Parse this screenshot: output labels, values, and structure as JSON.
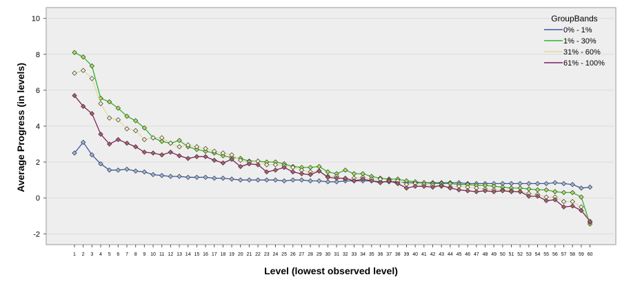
{
  "chart_data": {
    "type": "line",
    "xlabel": "Level (lowest observed level)",
    "ylabel": "Average Progress (in levels)",
    "ylim": [
      -2.6,
      10.6
    ],
    "yticks": [
      -2,
      0,
      2,
      4,
      6,
      8,
      10
    ],
    "grid": "horizontal",
    "legend": {
      "title": "GroupBands",
      "position": "top-right"
    },
    "x": [
      1,
      2,
      3,
      4,
      5,
      6,
      7,
      8,
      9,
      10,
      11,
      12,
      13,
      14,
      15,
      16,
      17,
      18,
      19,
      20,
      21,
      22,
      23,
      24,
      25,
      26,
      27,
      28,
      29,
      30,
      31,
      32,
      33,
      34,
      35,
      36,
      37,
      38,
      39,
      40,
      41,
      42,
      43,
      44,
      45,
      46,
      47,
      48,
      49,
      50,
      51,
      52,
      53,
      54,
      55,
      56,
      57,
      58,
      59,
      60
    ],
    "series": [
      {
        "name": "0% - 1%",
        "color": "#3a55a4",
        "values": [
          2.5,
          3.1,
          2.4,
          1.9,
          1.55,
          1.55,
          1.6,
          1.5,
          1.45,
          1.3,
          1.25,
          1.2,
          1.2,
          1.15,
          1.15,
          1.15,
          1.1,
          1.1,
          1.05,
          1.0,
          1.0,
          1.0,
          1.0,
          1.0,
          0.95,
          1.0,
          1.0,
          0.95,
          0.95,
          0.9,
          0.9,
          0.95,
          0.95,
          0.95,
          0.95,
          0.9,
          0.9,
          0.9,
          0.85,
          0.85,
          0.85,
          0.85,
          0.85,
          0.85,
          0.85,
          0.8,
          0.8,
          0.8,
          0.8,
          0.8,
          0.8,
          0.8,
          0.8,
          0.8,
          0.8,
          0.85,
          0.8,
          0.75,
          0.55,
          0.6
        ]
      },
      {
        "name": "1% - 30%",
        "color": "#2bb52b",
        "values": [
          8.1,
          7.85,
          7.35,
          5.55,
          5.35,
          5.0,
          4.55,
          4.3,
          3.9,
          3.35,
          3.15,
          3.05,
          3.2,
          2.85,
          2.7,
          2.6,
          2.5,
          2.35,
          2.25,
          2.2,
          2.05,
          2.05,
          2.0,
          2.0,
          1.9,
          1.75,
          1.7,
          1.7,
          1.75,
          1.45,
          1.35,
          1.55,
          1.35,
          1.35,
          1.2,
          1.1,
          1.05,
          1.05,
          0.95,
          0.9,
          0.85,
          0.8,
          0.8,
          0.8,
          0.75,
          0.75,
          0.7,
          0.7,
          0.65,
          0.6,
          0.55,
          0.55,
          0.5,
          0.45,
          0.45,
          0.35,
          0.3,
          0.3,
          0.05,
          -1.45
        ]
      },
      {
        "name": "31% - 60%",
        "color": "#dedd98",
        "values": [
          6.95,
          7.1,
          6.65,
          5.25,
          4.45,
          4.35,
          3.85,
          3.75,
          3.25,
          3.35,
          3.35,
          3.05,
          2.85,
          2.95,
          2.85,
          2.75,
          2.6,
          2.5,
          2.4,
          2.1,
          2.0,
          2.05,
          1.85,
          1.85,
          1.8,
          1.7,
          1.55,
          1.45,
          1.5,
          1.2,
          1.2,
          1.05,
          1.1,
          1.15,
          1.05,
          1.05,
          1.0,
          0.95,
          0.75,
          0.8,
          0.75,
          0.7,
          0.65,
          0.6,
          0.65,
          0.6,
          0.55,
          0.5,
          0.45,
          0.45,
          0.4,
          0.35,
          0.25,
          0.2,
          0.05,
          0.05,
          -0.2,
          -0.2,
          -0.5,
          -1.35
        ]
      },
      {
        "name": "61% - 100%",
        "color": "#7b1f5e",
        "values": [
          5.7,
          5.1,
          4.7,
          3.55,
          3.0,
          3.25,
          3.05,
          2.85,
          2.55,
          2.5,
          2.4,
          2.55,
          2.35,
          2.2,
          2.3,
          2.3,
          2.1,
          1.95,
          2.15,
          1.75,
          1.9,
          1.85,
          1.45,
          1.55,
          1.7,
          1.45,
          1.35,
          1.3,
          1.5,
          1.15,
          1.1,
          1.1,
          0.95,
          1.05,
          0.95,
          0.85,
          0.95,
          0.8,
          0.55,
          0.65,
          0.65,
          0.6,
          0.7,
          0.55,
          0.45,
          0.4,
          0.35,
          0.4,
          0.35,
          0.4,
          0.35,
          0.35,
          0.1,
          0.1,
          -0.15,
          -0.1,
          -0.5,
          -0.45,
          -0.7,
          -1.3
        ]
      }
    ]
  }
}
